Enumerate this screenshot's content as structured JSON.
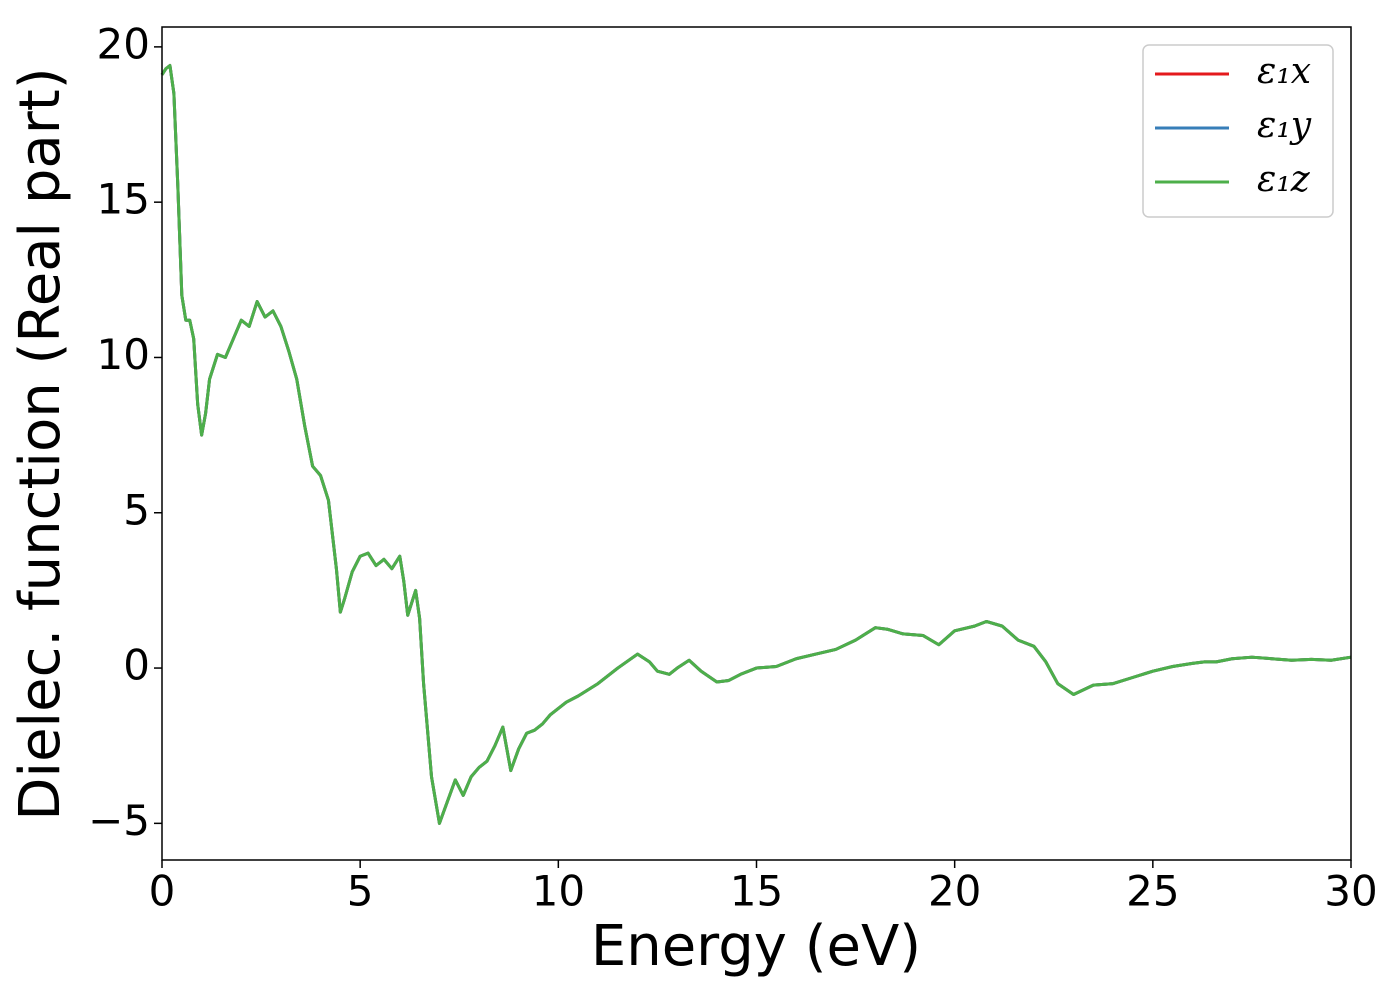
{
  "chart_data": {
    "type": "line",
    "x_label": "Energy (eV)",
    "y_label": "Dielec. function (Real part)",
    "xlim": [
      0,
      30
    ],
    "ylim": [
      -6.18,
      20.64
    ],
    "xticks": [
      0,
      5,
      10,
      15,
      20,
      25,
      30
    ],
    "yticks": [
      {
        "value": -5,
        "label": "−5"
      },
      0,
      5,
      10,
      15,
      20
    ],
    "legend": "upper right",
    "x": [
      0,
      0.1,
      0.2,
      0.3,
      0.4,
      0.5,
      0.6,
      0.7,
      0.8,
      0.9,
      1.0,
      1.1,
      1.2,
      1.4,
      1.6,
      1.8,
      2.0,
      2.2,
      2.4,
      2.6,
      2.8,
      3.0,
      3.2,
      3.4,
      3.6,
      3.8,
      4.0,
      4.2,
      4.4,
      4.5,
      4.6,
      4.8,
      5.0,
      5.2,
      5.4,
      5.6,
      5.8,
      6.0,
      6.1,
      6.2,
      6.4,
      6.5,
      6.6,
      6.8,
      7.0,
      7.2,
      7.4,
      7.6,
      7.8,
      8.0,
      8.2,
      8.4,
      8.6,
      8.7,
      8.8,
      9.0,
      9.2,
      9.4,
      9.6,
      9.8,
      10.0,
      10.2,
      10.5,
      11.0,
      11.5,
      12.0,
      12.3,
      12.5,
      12.8,
      13.0,
      13.3,
      13.6,
      14.0,
      14.3,
      14.6,
      15.0,
      15.5,
      16.0,
      16.5,
      17.0,
      17.5,
      18.0,
      18.3,
      18.7,
      19.2,
      19.6,
      20.0,
      20.5,
      20.8,
      21.2,
      21.6,
      22.0,
      22.3,
      22.6,
      23.0,
      23.5,
      24.0,
      24.5,
      25.0,
      25.5,
      26.0,
      26.3,
      26.6,
      27.0,
      27.5,
      28.0,
      28.5,
      29.0,
      29.5,
      30.0
    ],
    "series": [
      {
        "name": "ε₁x",
        "color": "#e41a1c",
        "values": [
          19.1,
          19.3,
          19.4,
          18.5,
          15.5,
          12.0,
          11.2,
          11.2,
          10.6,
          8.5,
          7.5,
          8.2,
          9.3,
          10.1,
          10.0,
          10.6,
          11.2,
          11.0,
          11.8,
          11.3,
          11.5,
          11.0,
          10.2,
          9.3,
          7.8,
          6.5,
          6.2,
          5.4,
          3.2,
          1.8,
          2.2,
          3.1,
          3.6,
          3.7,
          3.3,
          3.5,
          3.2,
          3.6,
          2.8,
          1.7,
          2.5,
          1.6,
          -0.5,
          -3.5,
          -5.0,
          -4.3,
          -3.6,
          -4.1,
          -3.5,
          -3.2,
          -3.0,
          -2.5,
          -1.9,
          -2.6,
          -3.3,
          -2.6,
          -2.1,
          -2.0,
          -1.8,
          -1.5,
          -1.3,
          -1.1,
          -0.9,
          -0.5,
          0.0,
          0.45,
          0.2,
          -0.1,
          -0.2,
          0.0,
          0.25,
          -0.1,
          -0.45,
          -0.4,
          -0.2,
          0.0,
          0.05,
          0.3,
          0.45,
          0.6,
          0.9,
          1.3,
          1.25,
          1.1,
          1.05,
          0.75,
          1.2,
          1.35,
          1.5,
          1.35,
          0.9,
          0.7,
          0.2,
          -0.5,
          -0.85,
          -0.55,
          -0.5,
          -0.3,
          -0.1,
          0.05,
          0.15,
          0.2,
          0.2,
          0.3,
          0.35,
          0.3,
          0.25,
          0.28,
          0.25,
          0.35
        ]
      },
      {
        "name": "ε₁y",
        "color": "#377eb8",
        "values": [
          19.1,
          19.3,
          19.4,
          18.5,
          15.5,
          12.0,
          11.2,
          11.2,
          10.6,
          8.5,
          7.5,
          8.2,
          9.3,
          10.1,
          10.0,
          10.6,
          11.2,
          11.0,
          11.8,
          11.3,
          11.5,
          11.0,
          10.2,
          9.3,
          7.8,
          6.5,
          6.2,
          5.4,
          3.2,
          1.8,
          2.2,
          3.1,
          3.6,
          3.7,
          3.3,
          3.5,
          3.2,
          3.6,
          2.8,
          1.7,
          2.5,
          1.6,
          -0.5,
          -3.5,
          -5.0,
          -4.3,
          -3.6,
          -4.1,
          -3.5,
          -3.2,
          -3.0,
          -2.5,
          -1.9,
          -2.6,
          -3.3,
          -2.6,
          -2.1,
          -2.0,
          -1.8,
          -1.5,
          -1.3,
          -1.1,
          -0.9,
          -0.5,
          0.0,
          0.45,
          0.2,
          -0.1,
          -0.2,
          0.0,
          0.25,
          -0.1,
          -0.45,
          -0.4,
          -0.2,
          0.0,
          0.05,
          0.3,
          0.45,
          0.6,
          0.9,
          1.3,
          1.25,
          1.1,
          1.05,
          0.75,
          1.2,
          1.35,
          1.5,
          1.35,
          0.9,
          0.7,
          0.2,
          -0.5,
          -0.85,
          -0.55,
          -0.5,
          -0.3,
          -0.1,
          0.05,
          0.15,
          0.2,
          0.2,
          0.3,
          0.35,
          0.3,
          0.25,
          0.28,
          0.25,
          0.35
        ]
      },
      {
        "name": "ε₁z",
        "color": "#4daf4a",
        "values": [
          19.1,
          19.3,
          19.4,
          18.5,
          15.5,
          12.0,
          11.2,
          11.2,
          10.6,
          8.5,
          7.5,
          8.2,
          9.3,
          10.1,
          10.0,
          10.6,
          11.2,
          11.0,
          11.8,
          11.3,
          11.5,
          11.0,
          10.2,
          9.3,
          7.8,
          6.5,
          6.2,
          5.4,
          3.2,
          1.8,
          2.2,
          3.1,
          3.6,
          3.7,
          3.3,
          3.5,
          3.2,
          3.6,
          2.8,
          1.7,
          2.5,
          1.6,
          -0.5,
          -3.5,
          -5.0,
          -4.3,
          -3.6,
          -4.1,
          -3.5,
          -3.2,
          -3.0,
          -2.5,
          -1.9,
          -2.6,
          -3.3,
          -2.6,
          -2.1,
          -2.0,
          -1.8,
          -1.5,
          -1.3,
          -1.1,
          -0.9,
          -0.5,
          0.0,
          0.45,
          0.2,
          -0.1,
          -0.2,
          0.0,
          0.25,
          -0.1,
          -0.45,
          -0.4,
          -0.2,
          0.0,
          0.05,
          0.3,
          0.45,
          0.6,
          0.9,
          1.3,
          1.25,
          1.1,
          1.05,
          0.75,
          1.2,
          1.35,
          1.5,
          1.35,
          0.9,
          0.7,
          0.2,
          -0.5,
          -0.85,
          -0.55,
          -0.5,
          -0.3,
          -0.1,
          0.05,
          0.15,
          0.2,
          0.2,
          0.3,
          0.35,
          0.3,
          0.25,
          0.28,
          0.25,
          0.35
        ]
      }
    ]
  }
}
